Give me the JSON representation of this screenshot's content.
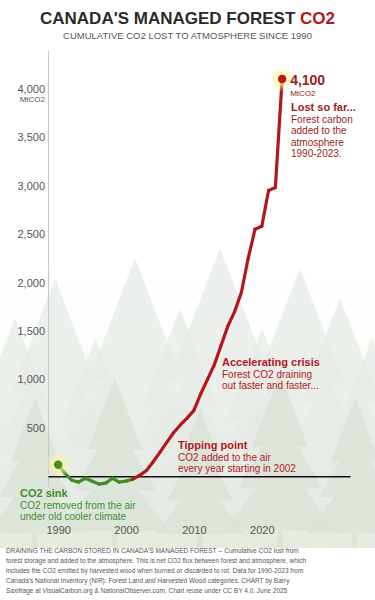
{
  "chart_data": {
    "type": "line",
    "title": "CANADA'S MANAGED FOREST CO2",
    "subtitle": "CUMULATIVE CO2 LOST TO ATMOSPHERE SINCE 1990",
    "ylabel": "MtCO2",
    "x": [
      1990,
      1991,
      1992,
      1993,
      1994,
      1995,
      1996,
      1997,
      1998,
      1999,
      2000,
      2001,
      2002,
      2003,
      2004,
      2005,
      2006,
      2007,
      2008,
      2009,
      2010,
      2011,
      2012,
      2013,
      2014,
      2015,
      2016,
      2017,
      2018,
      2019,
      2020,
      2021,
      2022,
      2023
    ],
    "values": [
      120,
      30,
      -40,
      -60,
      -20,
      -50,
      -80,
      -70,
      -20,
      -60,
      -50,
      -30,
      10,
      60,
      150,
      250,
      350,
      450,
      530,
      600,
      680,
      850,
      1000,
      1150,
      1350,
      1550,
      1700,
      1900,
      2250,
      2550,
      2580,
      2950,
      2980,
      4100
    ],
    "value_labels": [
      null,
      null,
      null,
      null,
      null,
      null,
      null,
      null,
      null,
      null,
      null,
      null,
      null,
      null,
      null,
      null,
      null,
      null,
      null,
      null,
      null,
      null,
      null,
      null,
      null,
      null,
      null,
      null,
      null,
      null,
      null,
      null,
      null,
      "4,100"
    ],
    "colors": [
      "#3e8e2a",
      "#3e8e2a",
      "#3e8e2a",
      "#3e8e2a",
      "#3e8e2a",
      "#3e8e2a",
      "#3e8e2a",
      "#3e8e2a",
      "#3e8e2a",
      "#3e8e2a",
      "#3e8e2a",
      "#3e8e2a",
      "#b3161b",
      "#b3161b",
      "#b3161b",
      "#b3161b",
      "#b3161b",
      "#b3161b",
      "#b3161b",
      "#b3161b",
      "#b3161b",
      "#b3161b",
      "#b3161b",
      "#b3161b",
      "#b3161b",
      "#b3161b",
      "#b3161b",
      "#b3161b",
      "#b3161b",
      "#b3161b",
      "#b3161b",
      "#b3161b",
      "#b3161b",
      "#b3161b"
    ],
    "xlim": [
      1988.5,
      2033
    ],
    "ylim": [
      -100,
      4400
    ],
    "xticks": [
      1990,
      2000,
      2010,
      2020
    ],
    "yticks": [
      500,
      {
        "value": 1000,
        "label": "1,000"
      },
      {
        "value": 1500,
        "label": "1,500"
      },
      {
        "value": 2000,
        "label": "2,000"
      },
      {
        "value": 2500,
        "label": "2,500"
      },
      {
        "value": 3000,
        "label": "3,000"
      },
      {
        "value": 3500,
        "label": "3,500"
      },
      {
        "value": 4000,
        "label": "4,000"
      }
    ],
    "grid": false,
    "annotations": [
      {
        "title": "Lost so far...",
        "text": [
          "Forest carbon",
          "added to the",
          "atmosphere",
          "1990-2023."
        ]
      },
      {
        "title": "Accelerating crisis",
        "text": [
          "Forest CO2 draining",
          "out faster and faster..."
        ]
      },
      {
        "title": "Tipping point",
        "text": [
          "CO2 added to the air",
          "every year starting in 2002"
        ]
      },
      {
        "title": "CO2 sink",
        "text": [
          "CO2 removed from the air",
          "under old cooler climate"
        ]
      }
    ],
    "footer": [
      "DRAINING THE CARBON STORED IN CANADA'S MANAGED FOREST -- Cumulative CO2 lost from",
      "forest storage and added to the atmosphere. This is net CO2 flux between forest and atmosphere, which",
      "includes the CO2 emitted by harvested wood when burned or discarded to rot. Data for 1990-2023 from",
      "Canada's National Inventory (NIR): Forest Land and Harvested Wood categories. CHART by Barry",
      "Saxifrage at VisualCarbon.org & NationalObserver.com. Chart reuse under CC BY 4.0. June 2025"
    ]
  }
}
